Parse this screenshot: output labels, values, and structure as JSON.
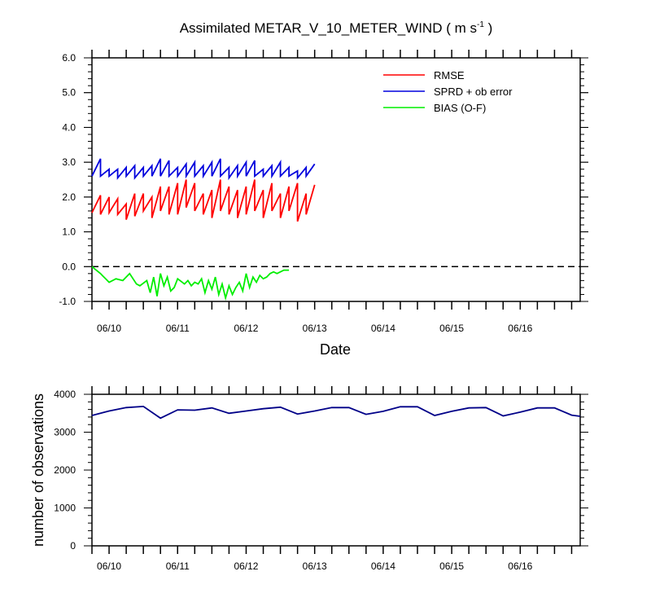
{
  "title": {
    "main": "Assimilated METAR_V_10_METER_WIND ( m s",
    "sup": "-1",
    "close": " )"
  },
  "colors": {
    "rmse": "#ff0000",
    "sprd": "#0000dd",
    "bias": "#00ee00",
    "obs": "#000088",
    "zero_line": "#000000"
  },
  "chart_data": [
    {
      "type": "line",
      "xlabel": "Date",
      "ylabel": "",
      "ylim": [
        -1.0,
        6.0
      ],
      "yticks": [
        "6.0",
        "5.0",
        "4.0",
        "3.0",
        "2.0",
        "1.0",
        "0.0",
        "-1.0"
      ],
      "xticks": [
        "06/10",
        "06/11",
        "06/12",
        "06/13",
        "06/14",
        "06/15",
        "06/16"
      ],
      "xticks_day": [
        10.0,
        11.0,
        12.0,
        13.0,
        14.0,
        15.0,
        16.0
      ],
      "xlim_day": [
        9.75,
        16.875
      ],
      "legend_position": "top-right",
      "reference_line": 0.0,
      "x_day": [
        9.75,
        10.0,
        10.25,
        10.5,
        10.75,
        11.0,
        11.25,
        11.5,
        11.75,
        12.0,
        12.25,
        12.5,
        12.75,
        13.0,
        13.25,
        13.5,
        13.75,
        14.0,
        14.25,
        14.5,
        14.75,
        15.0,
        15.25,
        15.5,
        15.75,
        16.0,
        16.25,
        16.5,
        16.75,
        16.875
      ],
      "series": [
        {
          "name": "RMSE",
          "color_key": "rmse",
          "segments": [
            [
              [
                9.75,
                1.55
              ],
              [
                9.875,
                2.05
              ]
            ],
            [
              [
                9.875,
                1.5
              ],
              [
                10.0,
                2.0
              ]
            ],
            [
              [
                10.0,
                1.55
              ],
              [
                10.125,
                1.95
              ]
            ],
            [
              [
                10.125,
                1.5
              ],
              [
                10.25,
                1.8
              ]
            ],
            [
              [
                10.25,
                1.35
              ],
              [
                10.375,
                2.1
              ]
            ],
            [
              [
                10.375,
                1.45
              ],
              [
                10.5,
                2.1
              ]
            ],
            [
              [
                10.5,
                1.6
              ],
              [
                10.625,
                2.0
              ]
            ],
            [
              [
                10.625,
                1.4
              ],
              [
                10.75,
                2.3
              ]
            ],
            [
              [
                10.75,
                1.6
              ],
              [
                10.875,
                2.3
              ]
            ],
            [
              [
                10.875,
                1.5
              ],
              [
                11.0,
                2.4
              ]
            ],
            [
              [
                11.0,
                1.5
              ],
              [
                11.125,
                2.5
              ]
            ],
            [
              [
                11.125,
                1.7
              ],
              [
                11.25,
                2.4
              ]
            ],
            [
              [
                11.25,
                1.6
              ],
              [
                11.375,
                2.1
              ]
            ],
            [
              [
                11.375,
                1.5
              ],
              [
                11.5,
                2.2
              ]
            ],
            [
              [
                11.5,
                1.4
              ],
              [
                11.625,
                2.5
              ]
            ],
            [
              [
                11.625,
                1.6
              ],
              [
                11.75,
                2.3
              ]
            ],
            [
              [
                11.75,
                1.5
              ],
              [
                11.875,
                2.2
              ]
            ],
            [
              [
                11.875,
                1.4
              ],
              [
                12.0,
                2.3
              ]
            ],
            [
              [
                12.0,
                1.5
              ],
              [
                12.125,
                2.5
              ]
            ],
            [
              [
                12.125,
                1.6
              ],
              [
                12.25,
                2.2
              ]
            ],
            [
              [
                12.25,
                1.4
              ],
              [
                12.375,
                2.4
              ]
            ],
            [
              [
                12.375,
                1.6
              ],
              [
                12.5,
                2.1
              ]
            ],
            [
              [
                12.5,
                1.4
              ],
              [
                12.625,
                2.3
              ]
            ],
            [
              [
                12.625,
                1.6
              ],
              [
                12.75,
                2.4
              ]
            ],
            [
              [
                12.75,
                1.3
              ],
              [
                12.875,
                2.1
              ]
            ],
            [
              [
                12.875,
                1.5
              ],
              [
                13.0,
                2.35
              ]
            ]
          ]
        },
        {
          "name": "SPRD + ob error",
          "color_key": "sprd",
          "segments": [
            [
              [
                9.75,
                2.6
              ],
              [
                9.875,
                3.1
              ]
            ],
            [
              [
                9.875,
                2.6
              ],
              [
                10.0,
                2.8
              ]
            ],
            [
              [
                10.0,
                2.6
              ],
              [
                10.125,
                2.8
              ]
            ],
            [
              [
                10.125,
                2.55
              ],
              [
                10.25,
                2.85
              ]
            ],
            [
              [
                10.25,
                2.6
              ],
              [
                10.375,
                2.9
              ]
            ],
            [
              [
                10.375,
                2.55
              ],
              [
                10.5,
                2.85
              ]
            ],
            [
              [
                10.5,
                2.6
              ],
              [
                10.625,
                2.9
              ]
            ],
            [
              [
                10.625,
                2.6
              ],
              [
                10.75,
                3.1
              ]
            ],
            [
              [
                10.75,
                2.6
              ],
              [
                10.875,
                3.05
              ]
            ],
            [
              [
                10.875,
                2.6
              ],
              [
                11.0,
                2.85
              ]
            ],
            [
              [
                11.0,
                2.6
              ],
              [
                11.125,
                2.95
              ]
            ],
            [
              [
                11.125,
                2.6
              ],
              [
                11.25,
                3.0
              ]
            ],
            [
              [
                11.25,
                2.6
              ],
              [
                11.375,
                2.9
              ]
            ],
            [
              [
                11.375,
                2.6
              ],
              [
                11.5,
                3.0
              ]
            ],
            [
              [
                11.5,
                2.6
              ],
              [
                11.625,
                3.1
              ]
            ],
            [
              [
                11.625,
                2.6
              ],
              [
                11.75,
                2.85
              ]
            ],
            [
              [
                11.75,
                2.55
              ],
              [
                11.875,
                2.9
              ]
            ],
            [
              [
                11.875,
                2.6
              ],
              [
                12.0,
                3.0
              ]
            ],
            [
              [
                12.0,
                2.6
              ],
              [
                12.125,
                3.05
              ]
            ],
            [
              [
                12.125,
                2.6
              ],
              [
                12.25,
                2.8
              ]
            ],
            [
              [
                12.25,
                2.6
              ],
              [
                12.375,
                2.9
              ]
            ],
            [
              [
                12.375,
                2.6
              ],
              [
                12.5,
                3.0
              ]
            ],
            [
              [
                12.5,
                2.6
              ],
              [
                12.625,
                2.85
              ]
            ],
            [
              [
                12.625,
                2.6
              ],
              [
                12.75,
                2.75
              ]
            ],
            [
              [
                12.75,
                2.55
              ],
              [
                12.875,
                2.85
              ]
            ],
            [
              [
                12.875,
                2.6
              ],
              [
                13.0,
                2.95
              ]
            ]
          ]
        },
        {
          "name": "BIAS (O-F)",
          "color_key": "bias",
          "points": [
            [
              9.75,
              0.0
            ],
            [
              9.875,
              -0.2
            ],
            [
              9.9,
              -0.25
            ],
            [
              10.0,
              -0.45
            ],
            [
              10.1,
              -0.35
            ],
            [
              10.2,
              -0.4
            ],
            [
              10.3,
              -0.2
            ],
            [
              10.4,
              -0.5
            ],
            [
              10.45,
              -0.55
            ],
            [
              10.55,
              -0.4
            ],
            [
              10.6,
              -0.75
            ],
            [
              10.65,
              -0.3
            ],
            [
              10.7,
              -0.85
            ],
            [
              10.75,
              -0.2
            ],
            [
              10.8,
              -0.55
            ],
            [
              10.85,
              -0.3
            ],
            [
              10.9,
              -0.7
            ],
            [
              10.95,
              -0.6
            ],
            [
              11.0,
              -0.35
            ],
            [
              11.1,
              -0.5
            ],
            [
              11.15,
              -0.4
            ],
            [
              11.2,
              -0.55
            ],
            [
              11.25,
              -0.45
            ],
            [
              11.3,
              -0.5
            ],
            [
              11.35,
              -0.35
            ],
            [
              11.4,
              -0.75
            ],
            [
              11.45,
              -0.4
            ],
            [
              11.5,
              -0.65
            ],
            [
              11.55,
              -0.3
            ],
            [
              11.6,
              -0.8
            ],
            [
              11.65,
              -0.5
            ],
            [
              11.7,
              -0.9
            ],
            [
              11.75,
              -0.55
            ],
            [
              11.8,
              -0.8
            ],
            [
              11.85,
              -0.6
            ],
            [
              11.9,
              -0.45
            ],
            [
              11.95,
              -0.7
            ],
            [
              12.0,
              -0.2
            ],
            [
              12.05,
              -0.6
            ],
            [
              12.1,
              -0.3
            ],
            [
              12.15,
              -0.45
            ],
            [
              12.2,
              -0.25
            ],
            [
              12.25,
              -0.35
            ],
            [
              12.3,
              -0.3
            ],
            [
              12.35,
              -0.2
            ],
            [
              12.4,
              -0.15
            ],
            [
              12.45,
              -0.2
            ],
            [
              12.5,
              -0.15
            ],
            [
              12.55,
              -0.1
            ],
            [
              12.625,
              -0.1
            ]
          ]
        }
      ]
    },
    {
      "type": "line",
      "xlabel": "",
      "ylabel": "number of observations",
      "ylim": [
        0,
        4000
      ],
      "yticks": [
        "4000",
        "3000",
        "2000",
        "1000",
        "0"
      ],
      "xticks": [
        "06/10",
        "06/11",
        "06/12",
        "06/13",
        "06/14",
        "06/15",
        "06/16"
      ],
      "xticks_day": [
        10.0,
        11.0,
        12.0,
        13.0,
        14.0,
        15.0,
        16.0
      ],
      "xlim_day": [
        9.75,
        16.875
      ],
      "series": [
        {
          "color_key": "obs",
          "points": [
            [
              9.75,
              3440
            ],
            [
              10.0,
              3560
            ],
            [
              10.25,
              3650
            ],
            [
              10.5,
              3680
            ],
            [
              10.75,
              3370
            ],
            [
              11.0,
              3590
            ],
            [
              11.25,
              3580
            ],
            [
              11.5,
              3640
            ],
            [
              11.75,
              3500
            ],
            [
              12.0,
              3560
            ],
            [
              12.25,
              3620
            ],
            [
              12.5,
              3660
            ],
            [
              12.75,
              3480
            ],
            [
              13.0,
              3560
            ],
            [
              13.25,
              3650
            ],
            [
              13.5,
              3650
            ],
            [
              13.75,
              3470
            ],
            [
              14.0,
              3550
            ],
            [
              14.25,
              3670
            ],
            [
              14.5,
              3670
            ],
            [
              14.75,
              3440
            ],
            [
              15.0,
              3550
            ],
            [
              15.25,
              3640
            ],
            [
              15.5,
              3650
            ],
            [
              15.75,
              3430
            ],
            [
              16.0,
              3530
            ],
            [
              16.25,
              3640
            ],
            [
              16.5,
              3640
            ],
            [
              16.75,
              3450
            ],
            [
              16.875,
              3420
            ]
          ]
        }
      ]
    }
  ]
}
